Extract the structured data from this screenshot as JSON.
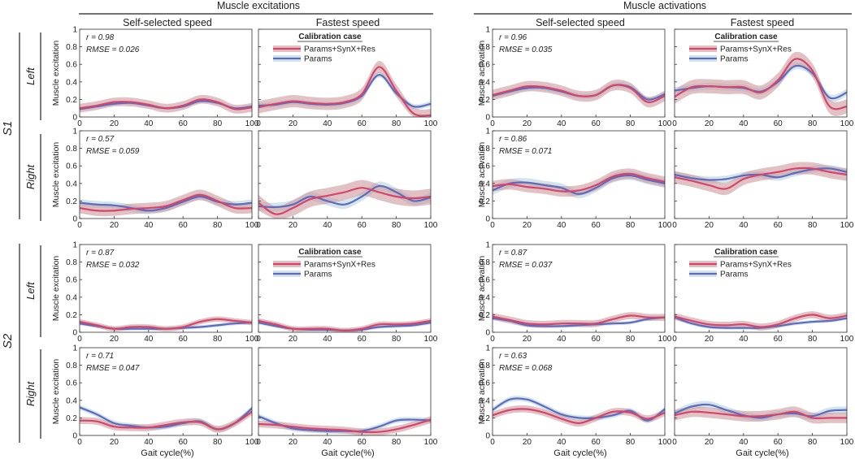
{
  "colors": {
    "red": "#D6446B",
    "red_band": "#CC9A9E",
    "blue": "#5C6BC0",
    "blue_band": "#C4DCE4",
    "axis": "#333333"
  },
  "chart_data": {
    "type": "line",
    "group_titles": [
      "Muscle excitations",
      "Muscle activations"
    ],
    "column_titles": [
      "Self-selected speed",
      "Fastest speed",
      "Self-selected speed",
      "Fastest speed"
    ],
    "subjects": [
      "S1",
      "S2"
    ],
    "sides": [
      "Left",
      "Right"
    ],
    "ylabels": [
      "Muscle excitation",
      "Muscle activation"
    ],
    "xlabel": "Gait cycle(%)",
    "xlim": [
      0,
      100
    ],
    "ylim": [
      0,
      1
    ],
    "xticks": [
      "0",
      "20",
      "40",
      "60",
      "80",
      "100"
    ],
    "yticks": [
      "0",
      "0.2",
      "0.4",
      "0.6",
      "0.8",
      "1"
    ],
    "legend": {
      "title": "Calibration case",
      "entries": [
        "Params+SynX+Res",
        "Params"
      ]
    },
    "x": [
      0,
      10,
      20,
      30,
      40,
      50,
      60,
      70,
      80,
      90,
      100
    ],
    "panels": [
      {
        "row": 0,
        "col": 0,
        "r": "r = 0.98",
        "rmse": "RMSE = 0.026",
        "legend": false,
        "red": [
          0.1,
          0.13,
          0.17,
          0.17,
          0.14,
          0.1,
          0.13,
          0.2,
          0.17,
          0.09,
          0.11
        ],
        "red_band": 0.05,
        "blue": [
          0.09,
          0.12,
          0.15,
          0.16,
          0.13,
          0.1,
          0.12,
          0.18,
          0.16,
          0.1,
          0.12
        ],
        "blue_band": 0.02
      },
      {
        "row": 0,
        "col": 1,
        "r": "",
        "rmse": "",
        "legend": true,
        "red": [
          0.11,
          0.15,
          0.18,
          0.16,
          0.15,
          0.17,
          0.26,
          0.57,
          0.3,
          0.04,
          0.02
        ],
        "red_band": 0.07,
        "blue": [
          0.13,
          0.14,
          0.17,
          0.15,
          0.14,
          0.16,
          0.24,
          0.48,
          0.27,
          0.12,
          0.15
        ],
        "blue_band": 0.03
      },
      {
        "row": 0,
        "col": 2,
        "r": "r = 0.96",
        "rmse": "RMSE = 0.035",
        "legend": false,
        "red": [
          0.25,
          0.3,
          0.35,
          0.34,
          0.3,
          0.24,
          0.25,
          0.36,
          0.33,
          0.17,
          0.24
        ],
        "red_band": 0.06,
        "blue": [
          0.24,
          0.29,
          0.33,
          0.33,
          0.29,
          0.24,
          0.25,
          0.36,
          0.34,
          0.2,
          0.26
        ],
        "blue_band": 0.03
      },
      {
        "row": 0,
        "col": 3,
        "r": "",
        "rmse": "",
        "legend": true,
        "red": [
          0.23,
          0.34,
          0.35,
          0.34,
          0.34,
          0.28,
          0.42,
          0.66,
          0.53,
          0.12,
          0.12
        ],
        "red_band": 0.08,
        "blue": [
          0.3,
          0.33,
          0.35,
          0.34,
          0.33,
          0.29,
          0.4,
          0.58,
          0.5,
          0.22,
          0.28
        ],
        "blue_band": 0.04
      },
      {
        "row": 1,
        "col": 0,
        "r": "r = 0.57",
        "rmse": "RMSE = 0.059",
        "legend": false,
        "red": [
          0.12,
          0.09,
          0.09,
          0.11,
          0.12,
          0.14,
          0.21,
          0.27,
          0.2,
          0.12,
          0.12
        ],
        "red_band": 0.06,
        "blue": [
          0.18,
          0.16,
          0.15,
          0.12,
          0.09,
          0.12,
          0.19,
          0.25,
          0.19,
          0.16,
          0.18
        ],
        "blue_band": 0.04
      },
      {
        "row": 1,
        "col": 1,
        "r": "",
        "rmse": "",
        "legend": false,
        "red": [
          0.18,
          0.05,
          0.12,
          0.22,
          0.26,
          0.3,
          0.35,
          0.3,
          0.25,
          0.23,
          0.25
        ],
        "red_band": 0.09,
        "blue": [
          0.14,
          0.13,
          0.16,
          0.25,
          0.2,
          0.16,
          0.25,
          0.37,
          0.3,
          0.2,
          0.24
        ],
        "blue_band": 0.05
      },
      {
        "row": 1,
        "col": 2,
        "r": "r = 0.86",
        "rmse": "RMSE = 0.071",
        "legend": false,
        "red": [
          0.37,
          0.39,
          0.36,
          0.34,
          0.31,
          0.32,
          0.38,
          0.48,
          0.51,
          0.46,
          0.42
        ],
        "red_band": 0.06,
        "blue": [
          0.32,
          0.4,
          0.41,
          0.38,
          0.35,
          0.28,
          0.35,
          0.46,
          0.49,
          0.44,
          0.4
        ],
        "blue_band": 0.05
      },
      {
        "row": 1,
        "col": 3,
        "r": "",
        "rmse": "",
        "legend": false,
        "red": [
          0.47,
          0.43,
          0.38,
          0.34,
          0.45,
          0.5,
          0.53,
          0.57,
          0.57,
          0.53,
          0.5
        ],
        "red_band": 0.07,
        "blue": [
          0.5,
          0.46,
          0.44,
          0.45,
          0.49,
          0.5,
          0.47,
          0.52,
          0.56,
          0.57,
          0.53
        ],
        "blue_band": 0.04
      },
      {
        "row": 2,
        "col": 0,
        "r": "r = 0.87",
        "rmse": "RMSE = 0.032",
        "legend": false,
        "red": [
          0.12,
          0.08,
          0.04,
          0.06,
          0.06,
          0.04,
          0.06,
          0.12,
          0.15,
          0.13,
          0.11
        ],
        "red_band": 0.03,
        "blue": [
          0.1,
          0.07,
          0.04,
          0.04,
          0.04,
          0.04,
          0.05,
          0.06,
          0.08,
          0.1,
          0.11
        ],
        "blue_band": 0.02
      },
      {
        "row": 2,
        "col": 1,
        "r": "",
        "rmse": "",
        "legend": true,
        "red": [
          0.13,
          0.09,
          0.04,
          0.04,
          0.04,
          0.02,
          0.04,
          0.09,
          0.09,
          0.1,
          0.13
        ],
        "red_band": 0.03,
        "blue": [
          0.11,
          0.07,
          0.04,
          0.03,
          0.03,
          0.02,
          0.03,
          0.06,
          0.07,
          0.08,
          0.11
        ],
        "blue_band": 0.02
      },
      {
        "row": 2,
        "col": 2,
        "r": "r = 0.87",
        "rmse": "RMSE = 0.037",
        "legend": false,
        "red": [
          0.18,
          0.14,
          0.1,
          0.09,
          0.1,
          0.1,
          0.1,
          0.15,
          0.19,
          0.17,
          0.17
        ],
        "red_band": 0.04,
        "blue": [
          0.16,
          0.13,
          0.08,
          0.07,
          0.07,
          0.08,
          0.09,
          0.1,
          0.11,
          0.15,
          0.17
        ],
        "blue_band": 0.02
      },
      {
        "row": 2,
        "col": 3,
        "r": "",
        "rmse": "",
        "legend": true,
        "red": [
          0.18,
          0.13,
          0.09,
          0.08,
          0.09,
          0.06,
          0.09,
          0.16,
          0.2,
          0.16,
          0.19
        ],
        "red_band": 0.04,
        "blue": [
          0.17,
          0.1,
          0.06,
          0.05,
          0.05,
          0.05,
          0.07,
          0.1,
          0.12,
          0.13,
          0.16
        ],
        "blue_band": 0.02
      },
      {
        "row": 3,
        "col": 0,
        "r": "r = 0.71",
        "rmse": "RMSE = 0.047",
        "legend": false,
        "red": [
          0.17,
          0.16,
          0.1,
          0.09,
          0.09,
          0.12,
          0.15,
          0.15,
          0.07,
          0.14,
          0.27
        ],
        "red_band": 0.04,
        "blue": [
          0.32,
          0.24,
          0.14,
          0.11,
          0.09,
          0.1,
          0.14,
          0.16,
          0.07,
          0.14,
          0.31
        ],
        "blue_band": 0.03
      },
      {
        "row": 3,
        "col": 1,
        "r": "",
        "rmse": "",
        "legend": false,
        "red": [
          0.13,
          0.12,
          0.1,
          0.08,
          0.07,
          0.06,
          0.04,
          0.04,
          0.07,
          0.12,
          0.18
        ],
        "red_band": 0.04,
        "blue": [
          0.22,
          0.14,
          0.08,
          0.06,
          0.05,
          0.05,
          0.05,
          0.1,
          0.17,
          0.18,
          0.17
        ],
        "blue_band": 0.03
      },
      {
        "row": 3,
        "col": 2,
        "r": "r = 0.63",
        "rmse": "RMSE = 0.068",
        "legend": false,
        "red": [
          0.23,
          0.29,
          0.3,
          0.26,
          0.19,
          0.14,
          0.2,
          0.27,
          0.26,
          0.19,
          0.26
        ],
        "red_band": 0.04,
        "blue": [
          0.29,
          0.41,
          0.41,
          0.33,
          0.24,
          0.2,
          0.2,
          0.23,
          0.28,
          0.17,
          0.3
        ],
        "blue_band": 0.03
      },
      {
        "row": 3,
        "col": 3,
        "r": "",
        "rmse": "",
        "legend": false,
        "red": [
          0.23,
          0.27,
          0.26,
          0.24,
          0.22,
          0.22,
          0.24,
          0.27,
          0.2,
          0.2,
          0.2
        ],
        "red_band": 0.06,
        "blue": [
          0.25,
          0.33,
          0.35,
          0.29,
          0.23,
          0.2,
          0.24,
          0.25,
          0.22,
          0.28,
          0.29
        ],
        "blue_band": 0.04
      }
    ]
  }
}
